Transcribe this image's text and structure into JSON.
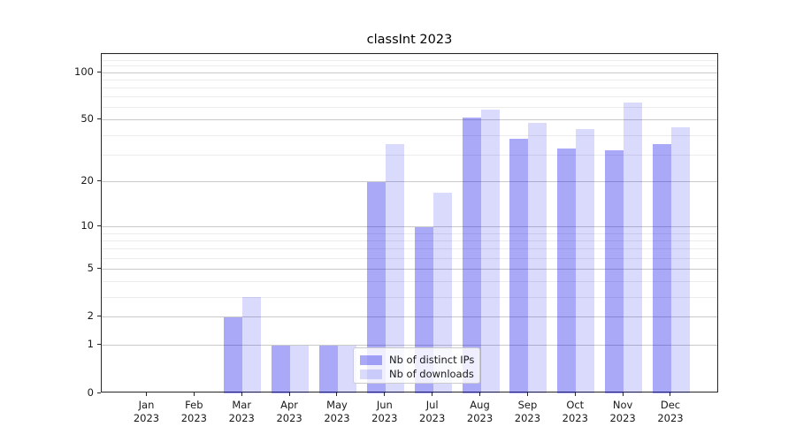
{
  "title": "classInt 2023",
  "colors": {
    "ips_bar": "rgba(10,10,235,0.35)",
    "downloads_bar": "rgba(10,10,235,0.15)",
    "grid_major": "#c9c9c9",
    "grid_minor": "#ececec",
    "spine": "#262626",
    "text": "#1a1a1a",
    "legend_bg": "rgba(255,255,255,0.8)",
    "legend_border": "#cccccc"
  },
  "chart_data": {
    "type": "bar",
    "title": "classInt 2023",
    "categories": [
      "Jan 2023",
      "Feb 2023",
      "Mar 2023",
      "Apr 2023",
      "May 2023",
      "Jun 2023",
      "Jul 2023",
      "Aug 2023",
      "Sep 2023",
      "Oct 2023",
      "Nov 2023",
      "Dec 2023"
    ],
    "series": [
      {
        "name": "Nb of distinct IPs",
        "values": [
          0,
          0,
          2,
          1,
          1,
          20,
          10,
          52,
          38,
          33,
          32,
          35
        ]
      },
      {
        "name": "Nb of downloads",
        "values": [
          0,
          0,
          3,
          1,
          1,
          35,
          17,
          58,
          48,
          44,
          65,
          45
        ]
      }
    ],
    "xlabel": "",
    "ylabel": "",
    "y_scale": "log1p",
    "ylim": [
      0,
      131
    ],
    "y_major_ticks": [
      0,
      1,
      2,
      5,
      10,
      20,
      50,
      100
    ],
    "y_minor_ticks": [
      3,
      4,
      6,
      7,
      8,
      9,
      30,
      40,
      60,
      70,
      80,
      90,
      110,
      120,
      130
    ],
    "grid": "on",
    "legend_position": "inside lower-center"
  }
}
